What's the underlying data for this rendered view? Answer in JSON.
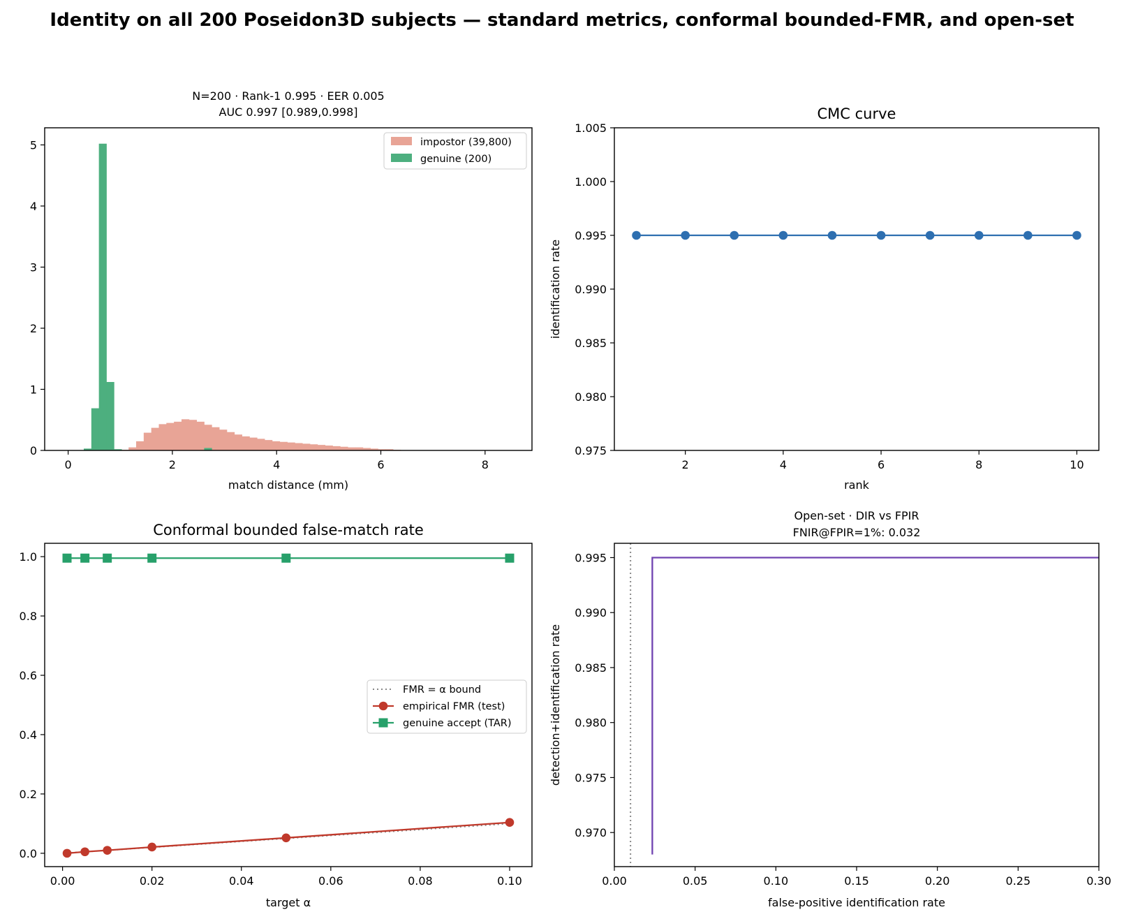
{
  "suptitle": "Identity on all 200 Poseidon3D subjects — standard metrics, conformal bounded-FMR, and open-set",
  "colors": {
    "impostor": "#e8a496",
    "genuine": "#4daf7f",
    "cmc": "#2e6fb0",
    "fmr": "#c0392b",
    "tar": "#27a06a",
    "bound": "#888888",
    "dir": "#6f42b0"
  },
  "chart_data": [
    {
      "type": "bar",
      "subtype": "histogram",
      "title": "N=200 · Rank-1 0.995 · EER 0.005",
      "subtitle": "AUC 0.997 [0.989,0.998]",
      "xlabel": "match distance (mm)",
      "ylabel": "",
      "xlim": [
        -0.45,
        8.9
      ],
      "ylim": [
        0,
        5.28
      ],
      "xticks": [
        0,
        2,
        4,
        6,
        8
      ],
      "yticks": [
        0,
        1,
        2,
        3,
        4,
        5
      ],
      "legend": {
        "placement": "top-right",
        "entries": [
          "impostor (39,800)",
          "genuine (200)"
        ]
      },
      "series": [
        {
          "name": "impostor (39,800)",
          "bin_width": 0.145,
          "bin_left": [
            0.0,
            0.145,
            0.29,
            0.435,
            0.58,
            0.725,
            0.87,
            1.015,
            1.16,
            1.305,
            1.45,
            1.595,
            1.74,
            1.885,
            2.03,
            2.175,
            2.32,
            2.465,
            2.61,
            2.755,
            2.9,
            3.045,
            3.19,
            3.335,
            3.48,
            3.625,
            3.77,
            3.915,
            4.06,
            4.205,
            4.35,
            4.495,
            4.64,
            4.785,
            4.93,
            5.075,
            5.22,
            5.365,
            5.51,
            5.655,
            5.8,
            5.945,
            6.09,
            6.235,
            6.38
          ],
          "values": [
            0.0,
            0.0,
            0.0,
            0.0,
            0.0,
            0.0,
            0.0,
            0.01,
            0.05,
            0.15,
            0.29,
            0.37,
            0.43,
            0.45,
            0.47,
            0.51,
            0.5,
            0.47,
            0.42,
            0.38,
            0.34,
            0.3,
            0.26,
            0.23,
            0.21,
            0.19,
            0.17,
            0.15,
            0.14,
            0.13,
            0.12,
            0.11,
            0.1,
            0.09,
            0.08,
            0.07,
            0.06,
            0.05,
            0.05,
            0.04,
            0.03,
            0.02,
            0.02,
            0.01,
            0.0
          ]
        },
        {
          "name": "genuine (200)",
          "bin_width": 0.145,
          "bin_left": [
            0.3,
            0.445,
            0.59,
            0.735,
            0.88,
            2.61
          ],
          "values": [
            0.03,
            0.69,
            5.02,
            1.12,
            0.02,
            0.04
          ]
        }
      ]
    },
    {
      "type": "line",
      "title": "CMC curve",
      "xlabel": "rank",
      "ylabel": "identification rate",
      "xlim": [
        0.55,
        10.45
      ],
      "ylim": [
        0.975,
        1.005
      ],
      "xticks": [
        2,
        4,
        6,
        8,
        10
      ],
      "yticks": [
        "0.975",
        "0.980",
        "0.985",
        "0.990",
        "0.995",
        "1.000",
        "1.005"
      ],
      "x": [
        1,
        2,
        3,
        4,
        5,
        6,
        7,
        8,
        9,
        10
      ],
      "y": [
        0.995,
        0.995,
        0.995,
        0.995,
        0.995,
        0.995,
        0.995,
        0.995,
        0.995,
        0.995
      ]
    },
    {
      "type": "line",
      "title": "Conformal bounded false-match rate",
      "xlabel": "target α",
      "ylabel": "",
      "xlim": [
        -0.004,
        0.105
      ],
      "ylim": [
        -0.045,
        1.045
      ],
      "xticks": [
        "0.00",
        "0.02",
        "0.04",
        "0.06",
        "0.08",
        "0.10"
      ],
      "yticks": [
        "0.0",
        "0.2",
        "0.4",
        "0.6",
        "0.8",
        "1.0"
      ],
      "legend": {
        "placement": "center-right",
        "entries": [
          "FMR = α bound",
          "empirical FMR (test)",
          "genuine accept (TAR)"
        ]
      },
      "x": [
        0.001,
        0.005,
        0.01,
        0.02,
        0.05,
        0.1
      ],
      "series": [
        {
          "name": "FMR = α bound",
          "values": [
            0.001,
            0.005,
            0.01,
            0.02,
            0.05,
            0.1
          ]
        },
        {
          "name": "empirical FMR (test)",
          "values": [
            0.0,
            0.005,
            0.01,
            0.021,
            0.052,
            0.104
          ]
        },
        {
          "name": "genuine accept (TAR)",
          "values": [
            0.995,
            0.995,
            0.995,
            0.995,
            0.995,
            0.995
          ]
        }
      ]
    },
    {
      "type": "line",
      "title": "Open-set · DIR vs FPIR",
      "subtitle": "FNIR@FPIR=1%: 0.032",
      "xlabel": "false-positive identification rate",
      "ylabel": "detection+identification rate",
      "xlim": [
        0.0,
        0.3
      ],
      "ylim": [
        0.9669,
        0.9963
      ],
      "xticks": [
        "0.00",
        "0.05",
        "0.10",
        "0.15",
        "0.20",
        "0.25",
        "0.30"
      ],
      "yticks": [
        "0.970",
        "0.975",
        "0.980",
        "0.985",
        "0.990",
        "0.995"
      ],
      "vline_x": 0.01,
      "x": [
        0.0235,
        0.0235,
        0.3
      ],
      "y": [
        0.968,
        0.995,
        0.995
      ]
    }
  ]
}
